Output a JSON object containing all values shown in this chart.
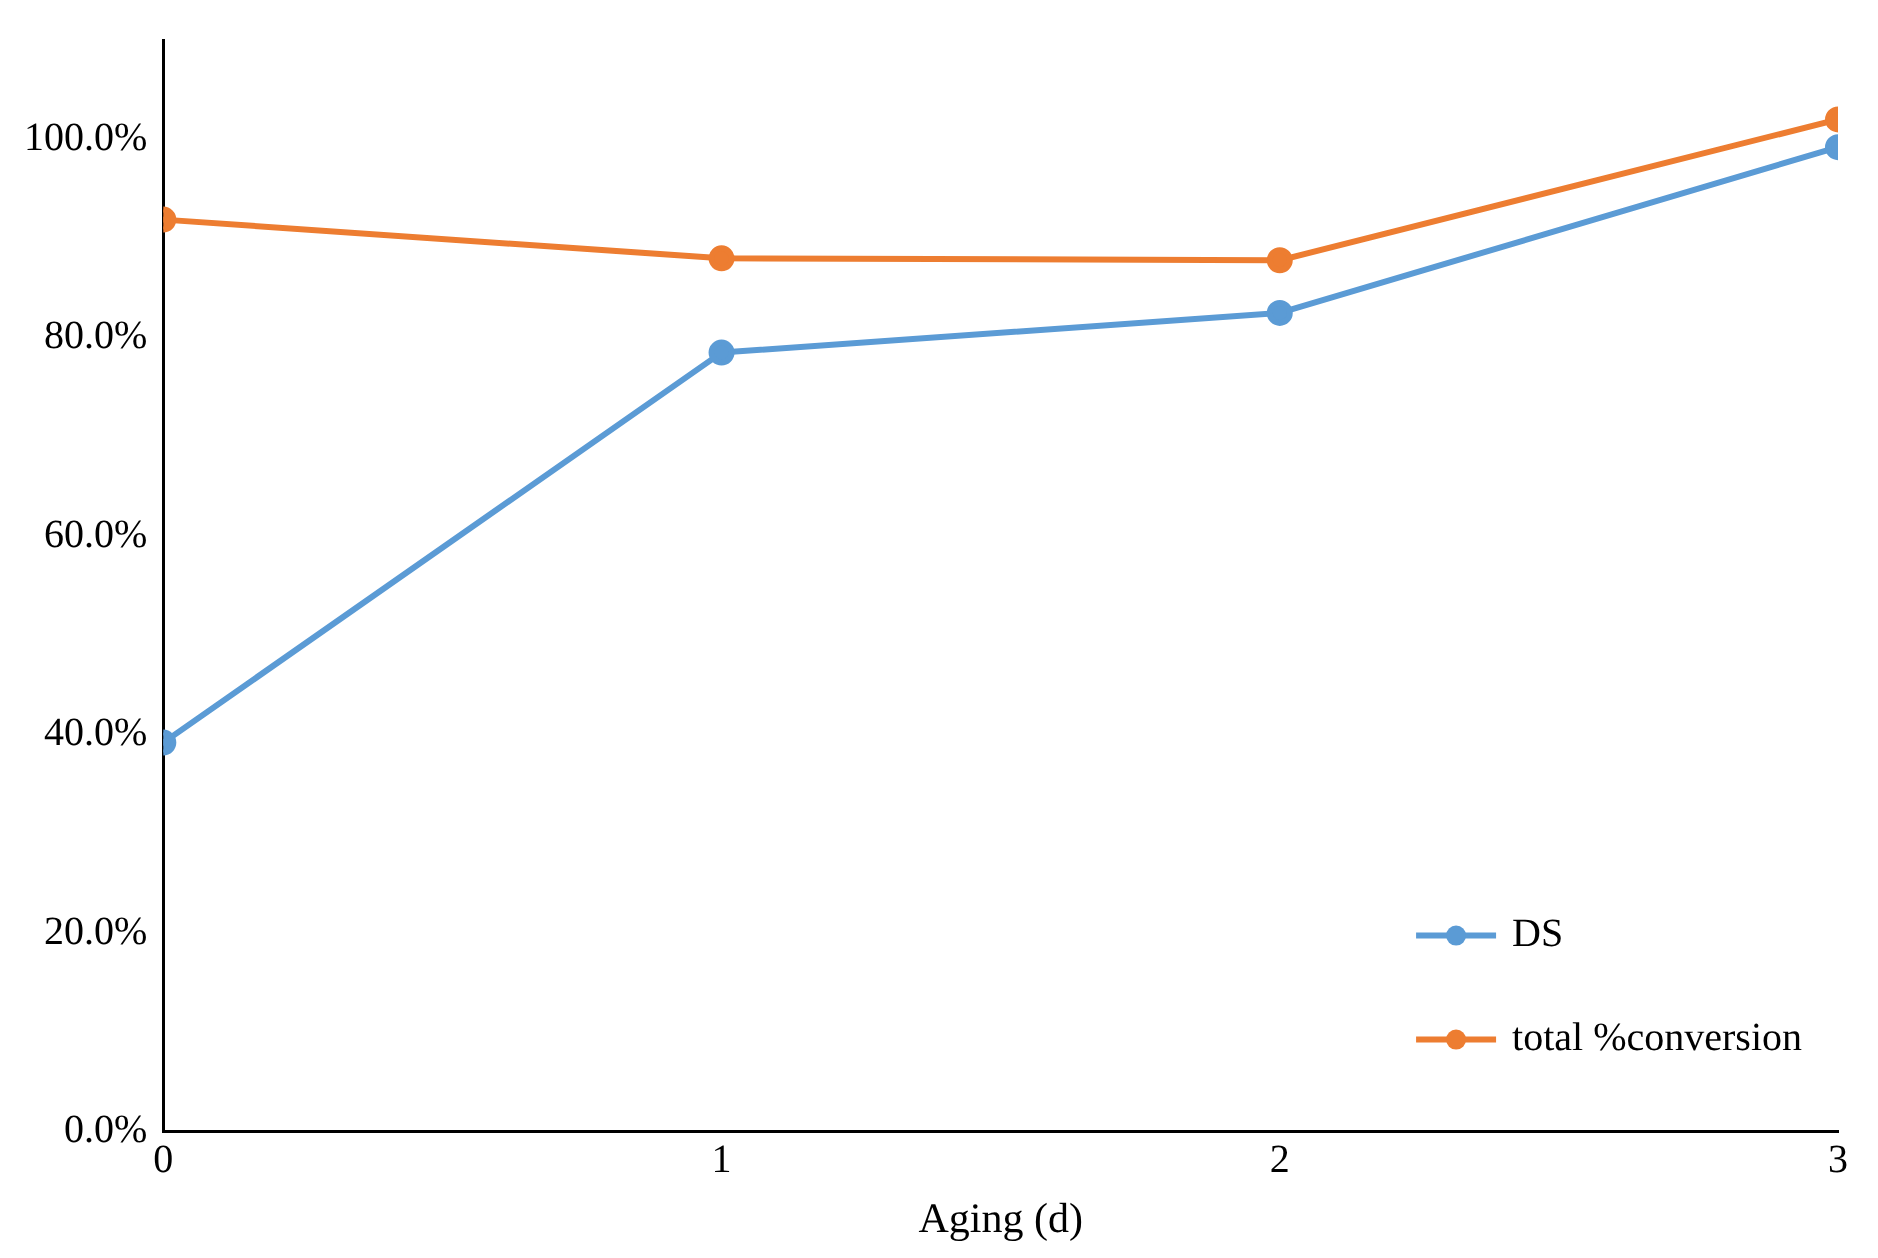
{
  "chart_data": {
    "type": "line",
    "xlabel": "Aging (d)",
    "x": [
      0,
      1,
      2,
      3
    ],
    "xlim": [
      0,
      3
    ],
    "xticks": [
      0,
      1,
      2,
      3
    ],
    "ylim": [
      0,
      110
    ],
    "yticks": [
      {
        "value": 0,
        "label": "0.0%"
      },
      {
        "value": 20,
        "label": "20.0%"
      },
      {
        "value": 40,
        "label": "40.0%"
      },
      {
        "value": 60,
        "label": "60.0%"
      },
      {
        "value": 80,
        "label": "80.0%"
      },
      {
        "value": 100,
        "label": "100.0%"
      }
    ],
    "series": [
      {
        "name": "DS",
        "color": "#5b9bd5",
        "values": [
          39.2,
          78.5,
          82.5,
          99.2
        ]
      },
      {
        "name": "total %conversion",
        "color": "#ed7d31",
        "values": [
          91.9,
          88.0,
          87.8,
          102.0
        ]
      }
    ],
    "grid": false,
    "legend": "bottom right",
    "marker": "circle",
    "line_style": "solid"
  }
}
